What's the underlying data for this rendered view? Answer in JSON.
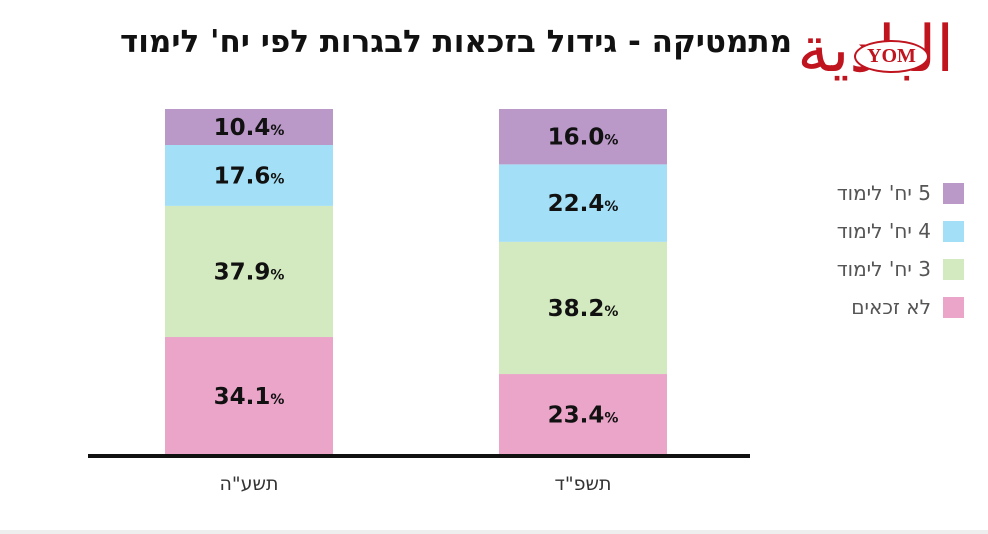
{
  "logo": {
    "text": "البادية",
    "badge": "YOM"
  },
  "chart_data": {
    "type": "bar",
    "stacked": true,
    "title": "מתמטיקה  - גידול בזכאות לבגרות לפי יח' לימוד",
    "categories": [
      "תשע\"ה",
      "תשפ\"ד"
    ],
    "series": [
      {
        "name": "לא זכאים",
        "color": "#eba5c9",
        "values": [
          34.1,
          23.4
        ]
      },
      {
        "name": "3 יח' לימוד",
        "color": "#d3e9bf",
        "values": [
          37.9,
          38.2
        ]
      },
      {
        "name": "4 יח' לימוד",
        "color": "#a3dff6",
        "values": [
          17.6,
          22.4
        ]
      },
      {
        "name": "5 יח' לימוד",
        "color": "#ba98c8",
        "values": [
          10.4,
          16.0
        ]
      }
    ],
    "legend_order": [
      3,
      2,
      1,
      0
    ],
    "value_suffix": "%",
    "ylim": [
      0,
      100
    ],
    "legend": "right",
    "grid": false,
    "colors": {
      "axis": "#111111",
      "label": "#111111",
      "tick": "#333333"
    }
  }
}
